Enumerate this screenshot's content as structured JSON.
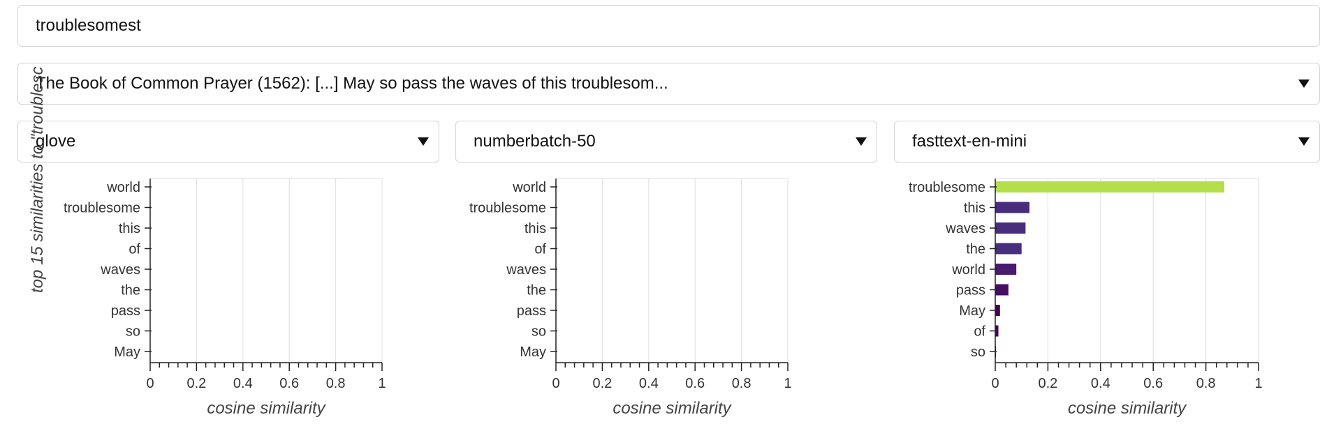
{
  "word_input": {
    "value": "troublesomest"
  },
  "sentence_select": {
    "selected": "The Book of Common Prayer (1562): [...] May so pass the waves of this troublesom..."
  },
  "model_selects": [
    {
      "selected": "glove"
    },
    {
      "selected": "numberbatch-50"
    },
    {
      "selected": "fasttext-en-mini"
    }
  ],
  "y_axis_title": "top 15 similarities to \"troublesc",
  "chart_data": [
    {
      "type": "bar",
      "orientation": "horizontal",
      "categories": [
        "world",
        "troublesome",
        "this",
        "of",
        "waves",
        "the",
        "pass",
        "so",
        "May"
      ],
      "values": [
        0,
        0,
        0,
        0,
        0,
        0,
        0,
        0,
        0
      ],
      "xlabel": "cosine similarity",
      "xlim": [
        0,
        1
      ],
      "xticks": [
        "0",
        "0.2",
        "0.4",
        "0.6",
        "0.8",
        "1"
      ],
      "grid": true
    },
    {
      "type": "bar",
      "orientation": "horizontal",
      "categories": [
        "world",
        "troublesome",
        "this",
        "of",
        "waves",
        "the",
        "pass",
        "so",
        "May"
      ],
      "values": [
        0,
        0,
        0,
        0,
        0,
        0,
        0,
        0,
        0
      ],
      "xlabel": "cosine similarity",
      "xlim": [
        0,
        1
      ],
      "xticks": [
        "0",
        "0.2",
        "0.4",
        "0.6",
        "0.8",
        "1"
      ],
      "grid": true
    },
    {
      "type": "bar",
      "orientation": "horizontal",
      "categories": [
        "troublesome",
        "this",
        "waves",
        "the",
        "world",
        "pass",
        "May",
        "of",
        "so"
      ],
      "values": [
        0.87,
        0.13,
        0.115,
        0.1,
        0.08,
        0.05,
        0.018,
        0.012,
        0.003
      ],
      "colors": [
        "#b5de4b",
        "#472d7b",
        "#472d7b",
        "#46307e",
        "#481b6d",
        "#450e60",
        "#440154",
        "#440154",
        "#440154"
      ],
      "xlabel": "cosine similarity",
      "xlim": [
        0,
        1
      ],
      "xticks": [
        "0",
        "0.2",
        "0.4",
        "0.6",
        "0.8",
        "1"
      ],
      "grid": true
    }
  ]
}
